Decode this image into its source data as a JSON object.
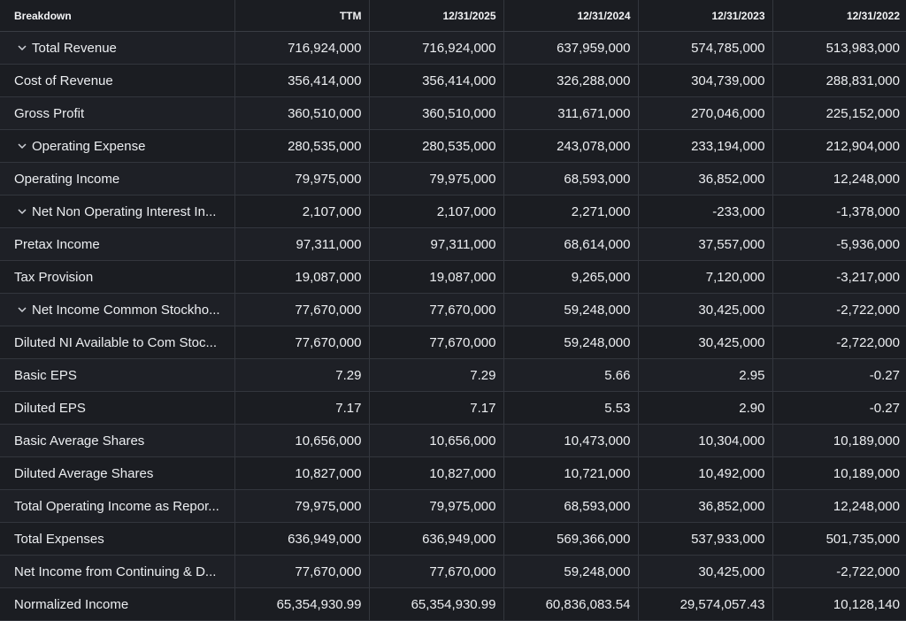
{
  "columns": [
    "Breakdown",
    "TTM",
    "12/31/2025",
    "12/31/2024",
    "12/31/2023",
    "12/31/2022"
  ],
  "rows": [
    {
      "label": "Total Revenue",
      "expandable": true,
      "values": [
        "716,924,000",
        "716,924,000",
        "637,959,000",
        "574,785,000",
        "513,983,000"
      ]
    },
    {
      "label": "Cost of Revenue",
      "expandable": false,
      "values": [
        "356,414,000",
        "356,414,000",
        "326,288,000",
        "304,739,000",
        "288,831,000"
      ]
    },
    {
      "label": "Gross Profit",
      "expandable": false,
      "values": [
        "360,510,000",
        "360,510,000",
        "311,671,000",
        "270,046,000",
        "225,152,000"
      ]
    },
    {
      "label": "Operating Expense",
      "expandable": true,
      "values": [
        "280,535,000",
        "280,535,000",
        "243,078,000",
        "233,194,000",
        "212,904,000"
      ]
    },
    {
      "label": "Operating Income",
      "expandable": false,
      "values": [
        "79,975,000",
        "79,975,000",
        "68,593,000",
        "36,852,000",
        "12,248,000"
      ]
    },
    {
      "label": "Net Non Operating Interest In...",
      "expandable": true,
      "values": [
        "2,107,000",
        "2,107,000",
        "2,271,000",
        "-233,000",
        "-1,378,000"
      ]
    },
    {
      "label": "Pretax Income",
      "expandable": false,
      "values": [
        "97,311,000",
        "97,311,000",
        "68,614,000",
        "37,557,000",
        "-5,936,000"
      ]
    },
    {
      "label": "Tax Provision",
      "expandable": false,
      "values": [
        "19,087,000",
        "19,087,000",
        "9,265,000",
        "7,120,000",
        "-3,217,000"
      ]
    },
    {
      "label": "Net Income Common Stockho...",
      "expandable": true,
      "values": [
        "77,670,000",
        "77,670,000",
        "59,248,000",
        "30,425,000",
        "-2,722,000"
      ]
    },
    {
      "label": "Diluted NI Available to Com Stoc...",
      "expandable": false,
      "values": [
        "77,670,000",
        "77,670,000",
        "59,248,000",
        "30,425,000",
        "-2,722,000"
      ]
    },
    {
      "label": "Basic EPS",
      "expandable": false,
      "values": [
        "7.29",
        "7.29",
        "5.66",
        "2.95",
        "-0.27"
      ]
    },
    {
      "label": "Diluted EPS",
      "expandable": false,
      "values": [
        "7.17",
        "7.17",
        "5.53",
        "2.90",
        "-0.27"
      ]
    },
    {
      "label": "Basic Average Shares",
      "expandable": false,
      "values": [
        "10,656,000",
        "10,656,000",
        "10,473,000",
        "10,304,000",
        "10,189,000"
      ]
    },
    {
      "label": "Diluted Average Shares",
      "expandable": false,
      "values": [
        "10,827,000",
        "10,827,000",
        "10,721,000",
        "10,492,000",
        "10,189,000"
      ]
    },
    {
      "label": "Total Operating Income as Repor...",
      "expandable": false,
      "values": [
        "79,975,000",
        "79,975,000",
        "68,593,000",
        "36,852,000",
        "12,248,000"
      ]
    },
    {
      "label": "Total Expenses",
      "expandable": false,
      "values": [
        "636,949,000",
        "636,949,000",
        "569,366,000",
        "537,933,000",
        "501,735,000"
      ]
    },
    {
      "label": "Net Income from Continuing & D...",
      "expandable": false,
      "values": [
        "77,670,000",
        "77,670,000",
        "59,248,000",
        "30,425,000",
        "-2,722,000"
      ]
    },
    {
      "label": "Normalized Income",
      "expandable": false,
      "values": [
        "65,354,930.99",
        "65,354,930.99",
        "60,836,083.54",
        "29,574,057.43",
        "10,128,140"
      ]
    }
  ],
  "expand_icon": "chevron-down-icon",
  "colors": {
    "background": "#1b1d22",
    "row_alt": "#1e2026",
    "grid": "#33363d",
    "text": "#eceef1"
  }
}
